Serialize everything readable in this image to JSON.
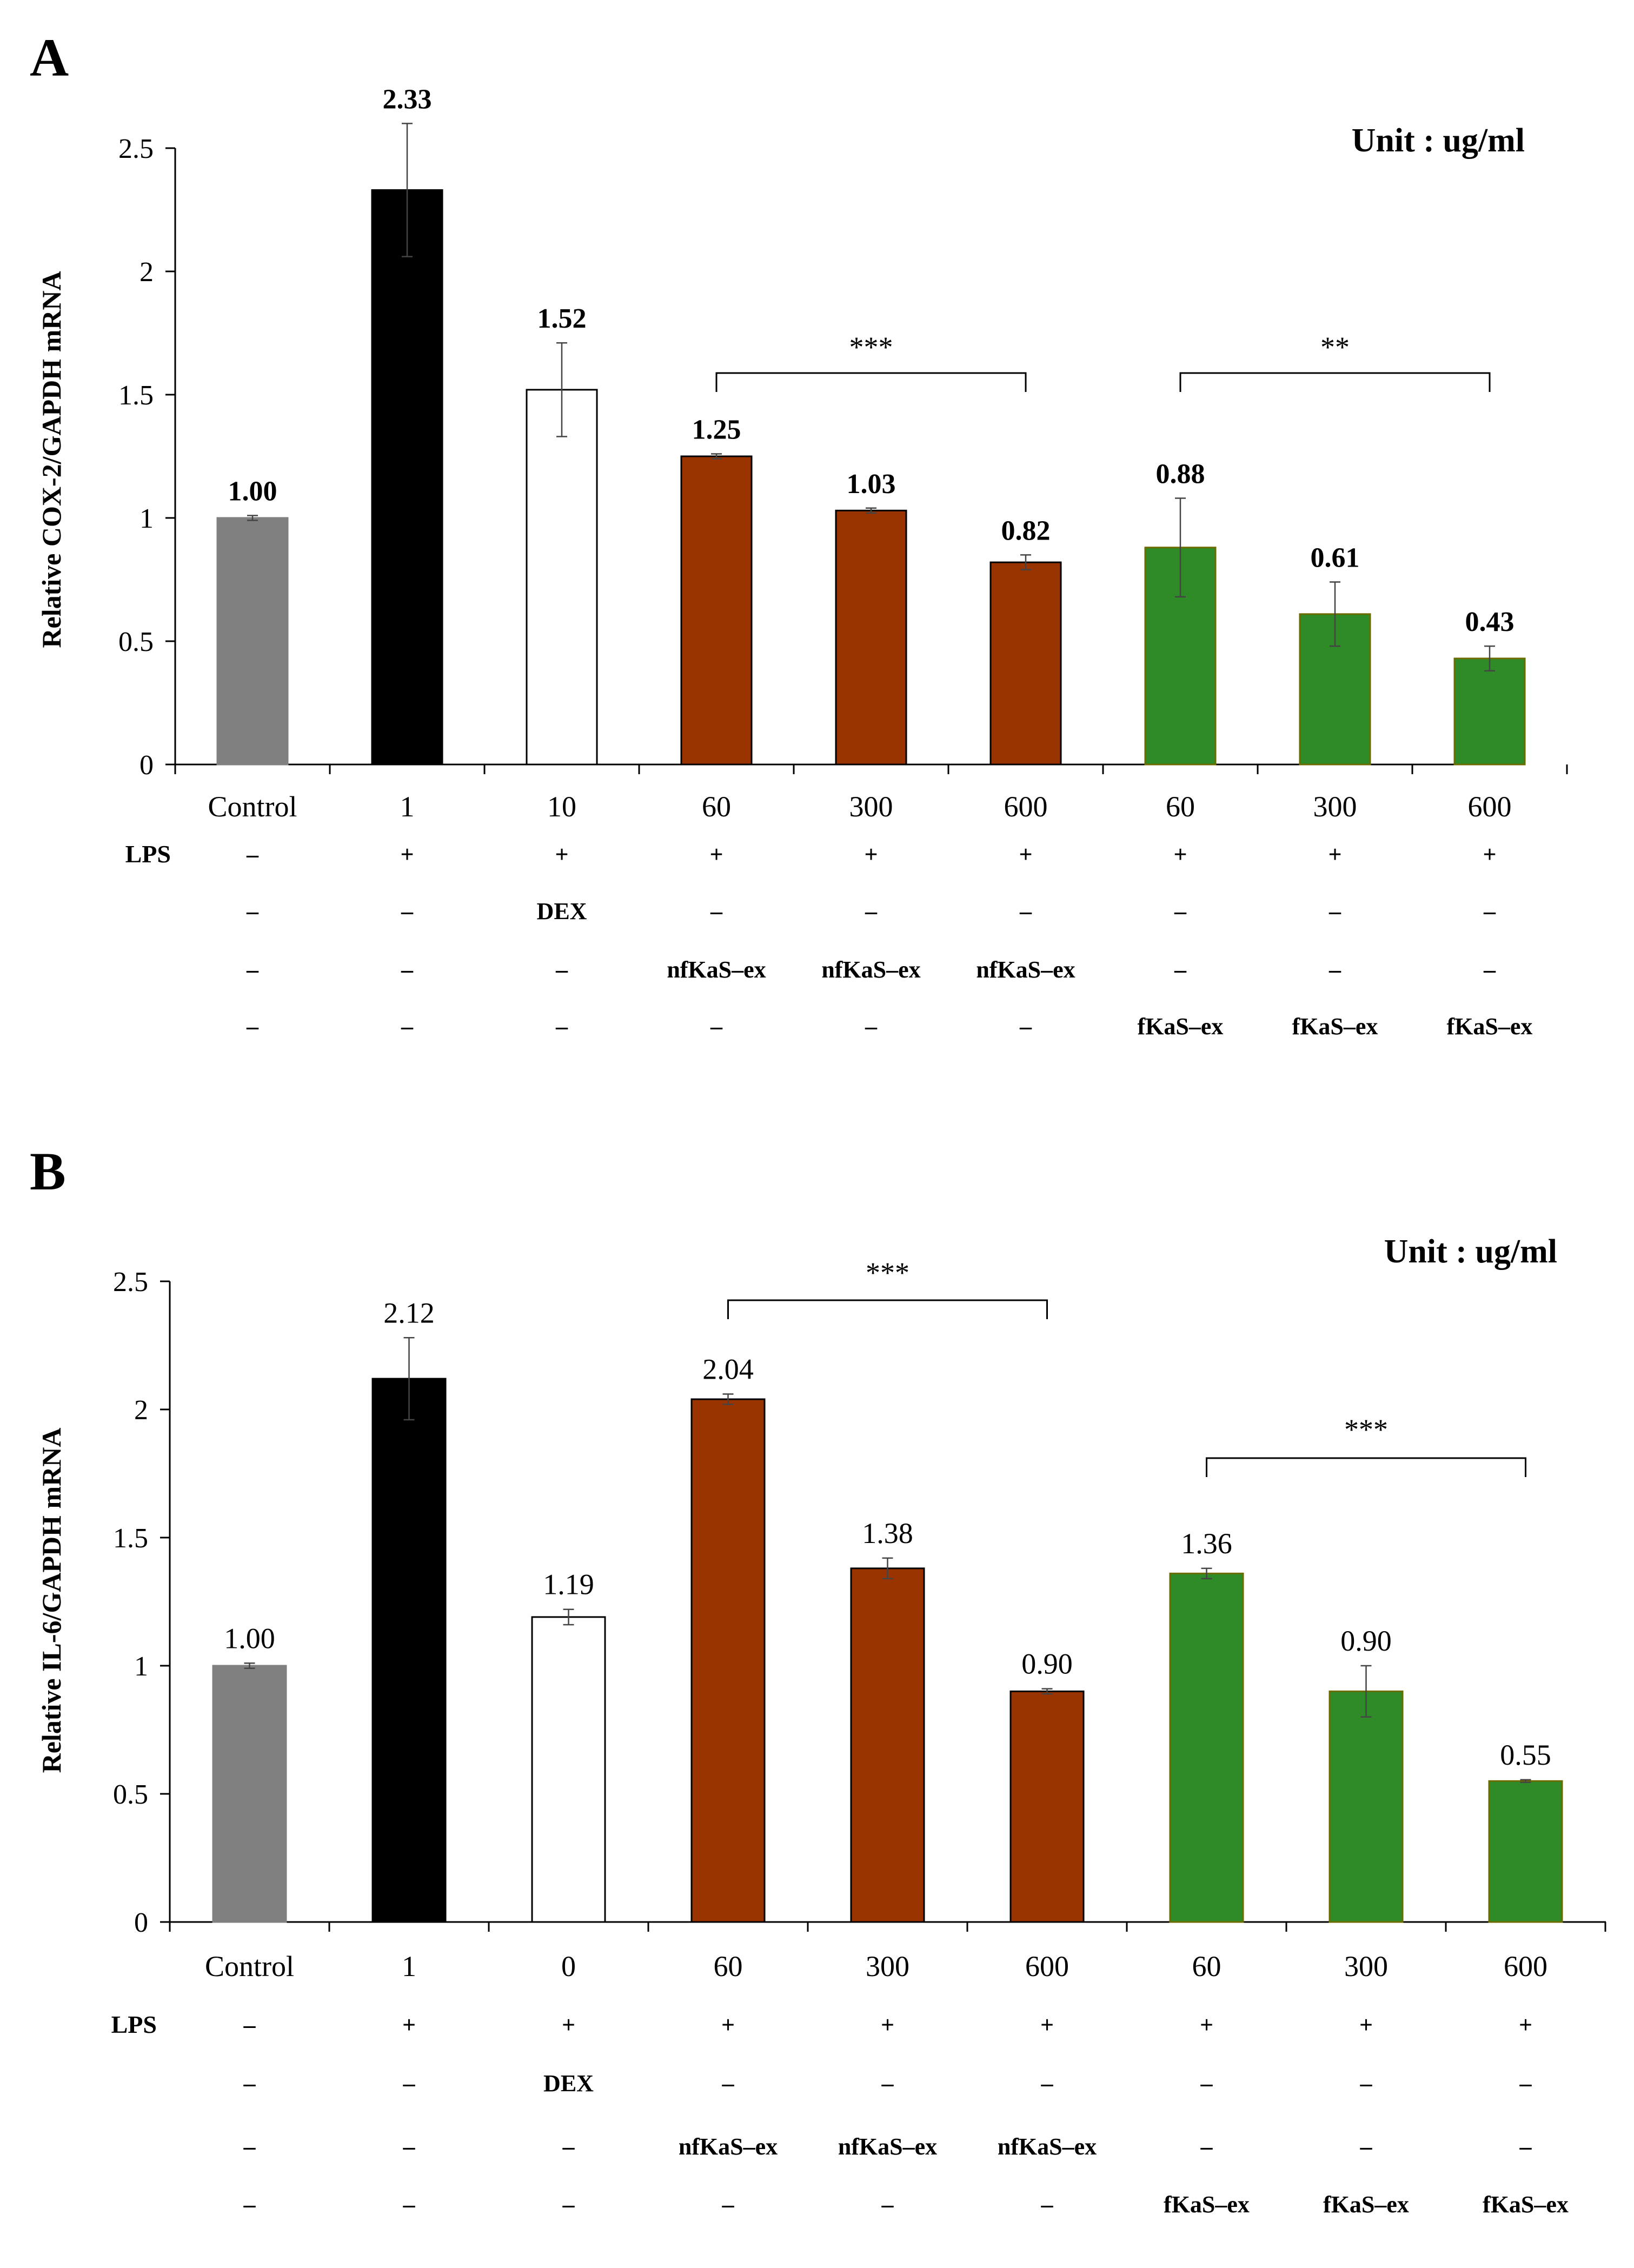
{
  "chart_data": [
    {
      "type": "bar",
      "panel_label": "A",
      "unit_note": "Unit : ug/ml",
      "ylabel": "Relative COX-2/GAPDH mRNA",
      "ylim": [
        0,
        2.5
      ],
      "yticks": [
        "0",
        "0.5",
        "1",
        "1.5",
        "2",
        "2.5"
      ],
      "categories": [
        "Control",
        "1",
        "10",
        "60",
        "300",
        "600",
        "60",
        "300",
        "600"
      ],
      "values": [
        1.0,
        2.33,
        1.52,
        1.25,
        1.03,
        0.82,
        0.88,
        0.61,
        0.43
      ],
      "errors": [
        0.01,
        0.27,
        0.19,
        0.01,
        0.01,
        0.03,
        0.2,
        0.13,
        0.05
      ],
      "value_labels": [
        "1.00",
        "2.33",
        "1.52",
        "1.25",
        "1.03",
        "0.82",
        "0.88",
        "0.61",
        "0.43"
      ],
      "colors": [
        "#808080",
        "#000000",
        "#ffffff",
        "#993300",
        "#993300",
        "#993300",
        "#2e8b27",
        "#2e8b27",
        "#2e8b27"
      ],
      "significance": [
        {
          "from": 3,
          "to": 5,
          "label": "***"
        },
        {
          "from": 6,
          "to": 8,
          "label": "**"
        }
      ],
      "treatment_rows": [
        {
          "header": "LPS",
          "cells": [
            "–",
            "+",
            "+",
            "+",
            "+",
            "+",
            "+",
            "+",
            "+"
          ]
        },
        {
          "header": "",
          "cells": [
            "–",
            "–",
            "DEX",
            "–",
            "–",
            "–",
            "–",
            "–",
            "–"
          ]
        },
        {
          "header": "",
          "cells": [
            "–",
            "–",
            "–",
            "nfKaS–ex",
            "nfKaS–ex",
            "nfKaS–ex",
            "–",
            "–",
            "–"
          ]
        },
        {
          "header": "",
          "cells": [
            "–",
            "–",
            "–",
            "–",
            "–",
            "–",
            "fKaS–ex",
            "fKaS–ex",
            "fKaS–ex"
          ]
        }
      ]
    },
    {
      "type": "bar",
      "panel_label": "B",
      "unit_note": "Unit : ug/ml",
      "ylabel": "Relative IL-6/GAPDH mRNA",
      "ylim": [
        0,
        2.5
      ],
      "yticks": [
        "0",
        "0.5",
        "1",
        "1.5",
        "2",
        "2.5"
      ],
      "categories": [
        "Control",
        "1",
        "0",
        "60",
        "300",
        "600",
        "60",
        "300",
        "600"
      ],
      "values": [
        1.0,
        2.12,
        1.19,
        2.04,
        1.38,
        0.9,
        1.36,
        0.9,
        0.55
      ],
      "errors": [
        0.01,
        0.16,
        0.03,
        0.02,
        0.04,
        0.01,
        0.02,
        0.1,
        0.005
      ],
      "value_labels": [
        "1.00",
        "2.12",
        "1.19",
        "2.04",
        "1.38",
        "0.90",
        "1.36",
        "0.90",
        "0.55"
      ],
      "colors": [
        "#808080",
        "#000000",
        "#ffffff",
        "#993300",
        "#993300",
        "#993300",
        "#2e8b27",
        "#2e8b27",
        "#2e8b27"
      ],
      "significance": [
        {
          "from": 3,
          "to": 5,
          "label": "***"
        },
        {
          "from": 6,
          "to": 8,
          "label": "***"
        }
      ],
      "treatment_rows": [
        {
          "header": "LPS",
          "cells": [
            "–",
            "+",
            "+",
            "+",
            "+",
            "+",
            "+",
            "+",
            "+"
          ]
        },
        {
          "header": "",
          "cells": [
            "–",
            "–",
            "DEX",
            "–",
            "–",
            "–",
            "–",
            "–",
            "–"
          ]
        },
        {
          "header": "",
          "cells": [
            "–",
            "–",
            "–",
            "nfKaS–ex",
            "nfKaS–ex",
            "nfKaS–ex",
            "–",
            "–",
            "–"
          ]
        },
        {
          "header": "",
          "cells": [
            "–",
            "–",
            "–",
            "–",
            "–",
            "–",
            "fKaS–ex",
            "fKaS–ex",
            "fKaS–ex"
          ]
        }
      ]
    }
  ]
}
